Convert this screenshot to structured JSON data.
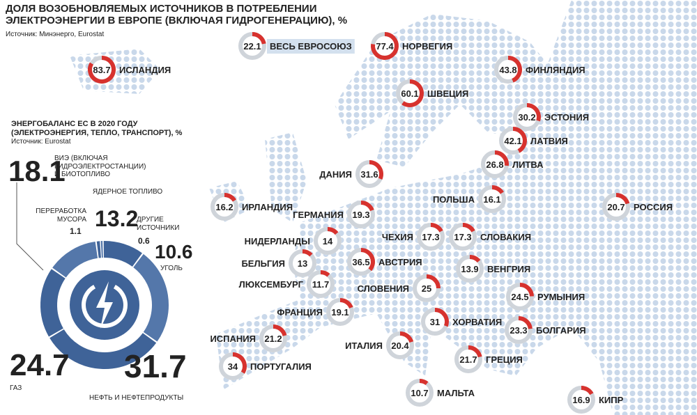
{
  "chart_data": [
    {
      "type": "gauge-map",
      "title": "ДОЛЯ ВОЗОБНОВЛЯЕМЫХ ИСТОЧНИКОВ В ПОТРЕБЛЕНИИ ЭЛЕКТРОЭНЕРГИИ В ЕВРОПЕ (ВКЛЮЧАЯ ГИДРОГЕНЕРАЦИЮ), %",
      "subtitle": "Источник: Минэнерго, Eurostat",
      "categories": [
        "ВЕСЬ ЕВРОСОЮЗ",
        "НОРВЕГИЯ",
        "ИСЛАНДИЯ",
        "ФИНЛЯНДИЯ",
        "ШВЕЦИЯ",
        "ЭСТОНИЯ",
        "ЛАТВИЯ",
        "ЛИТВА",
        "ДАНИЯ",
        "ПОЛЬША",
        "РОССИЯ",
        "ИРЛАНДИЯ",
        "ГЕРМАНИЯ",
        "ЧЕХИЯ",
        "СЛОВАКИЯ",
        "НИДЕРЛАНДЫ",
        "БЕЛЬГИЯ",
        "АВСТРИЯ",
        "ВЕНГРИЯ",
        "ЛЮКСЕМБУРГ",
        "СЛОВЕНИЯ",
        "РУМЫНИЯ",
        "ФРАНЦИЯ",
        "ХОРВАТИЯ",
        "БОЛГАРИЯ",
        "ИСПАНИЯ",
        "ИТАЛИЯ",
        "ПОРТУГАЛИЯ",
        "ГРЕЦИЯ",
        "МАЛЬТА",
        "КИПР"
      ],
      "values": [
        22.1,
        77.4,
        83.7,
        43.8,
        60.1,
        30.2,
        42.1,
        26.8,
        31.6,
        16.1,
        20.7,
        16.2,
        19.3,
        17.3,
        17.3,
        14,
        13,
        36.5,
        13.9,
        11.7,
        25,
        24.5,
        19.1,
        31,
        23.3,
        21.2,
        20.4,
        34,
        21.7,
        10.7,
        16.9
      ],
      "color": "#d7322e"
    },
    {
      "type": "donut",
      "title": "ЭНЕРГОБАЛАНС ЕС В 2020 ГОДУ (ЭЛЕКТРОЭНЕРГИЯ, ТЕПЛО, ТРАНСПОРТ), %",
      "subtitle": "Источник: Eurostat",
      "categories": [
        "ВИЭ (ВКЛЮЧАЯ ГИДРОЭЛЕКТРОСТАНЦИИ) И БИОТОПЛИВО",
        "ЯДЕРНОЕ ТОПЛИВО",
        "ПЕРЕРАБОТКА МУСОРА",
        "ДРУГИЕ ИСТОЧНИКИ",
        "УГОЛЬ",
        "ГАЗ",
        "НЕФТЬ И НЕФТЕПРОДУКТЫ"
      ],
      "values": [
        18.1,
        13.2,
        1.1,
        0.6,
        10.6,
        24.7,
        31.7
      ],
      "colors": [
        "#3f6398",
        "#5477aa",
        "#3f6398",
        "#5477aa",
        "#3f6398",
        "#5477aa",
        "#3f6398"
      ]
    }
  ]
}
